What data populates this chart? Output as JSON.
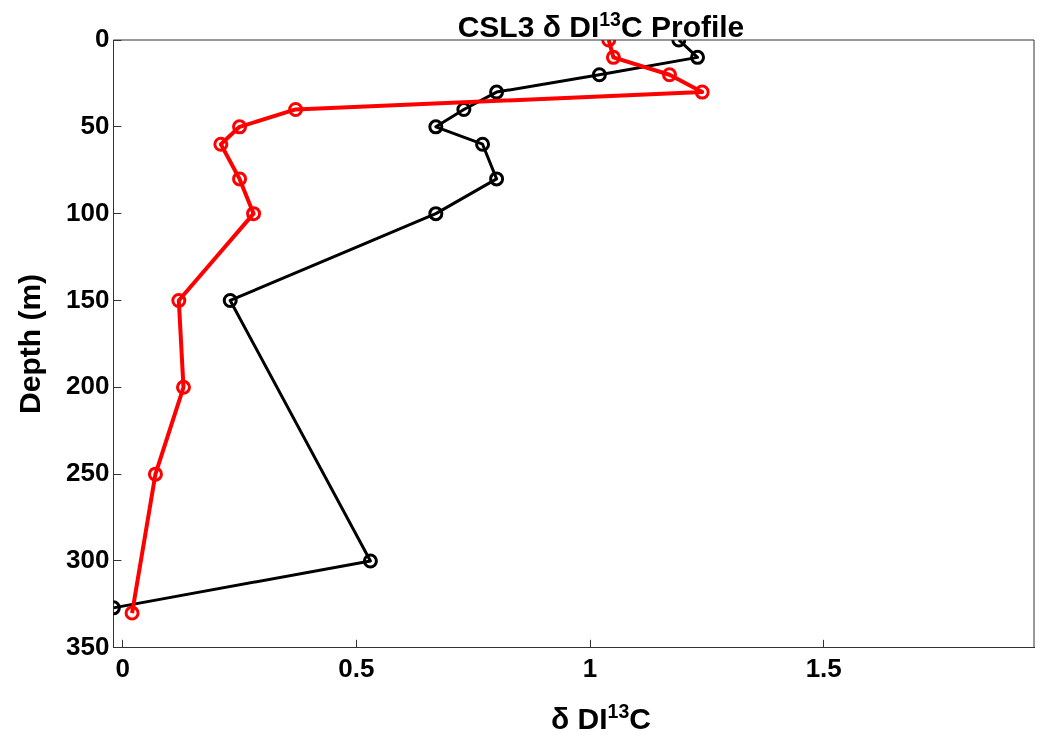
{
  "chart_data": {
    "type": "line",
    "title": "CSL3 δ DI$^{13}$C Profile",
    "xlabel": "δ DI$^{13}$C",
    "ylabel": "Depth (m)",
    "xlim": [
      -0.02,
      1.95
    ],
    "xticks": [
      0,
      0.5,
      1,
      1.5
    ],
    "ylim": [
      350,
      0
    ],
    "yticks": [
      0,
      50,
      100,
      150,
      200,
      250,
      300,
      350
    ],
    "marker": "circle",
    "grid": false,
    "legend": false,
    "series": [
      {
        "color": "#ff0000",
        "x": [
          1.04,
          1.05,
          1.17,
          1.24,
          0.37,
          0.25,
          0.21,
          0.25,
          0.28,
          0.12,
          0.13,
          0.07,
          0.02
        ],
        "values": [
          0,
          10,
          20,
          30,
          40,
          50,
          60,
          80,
          100,
          150,
          200,
          250,
          330
        ]
      },
      {
        "color": "#000000",
        "x": [
          1.19,
          1.23,
          1.02,
          0.8,
          0.73,
          0.67,
          0.77,
          0.8,
          0.67,
          0.23,
          0.53,
          -0.02
        ],
        "values": [
          0,
          10,
          20,
          30,
          40,
          50,
          60,
          80,
          100,
          150,
          300,
          327
        ]
      }
    ]
  }
}
